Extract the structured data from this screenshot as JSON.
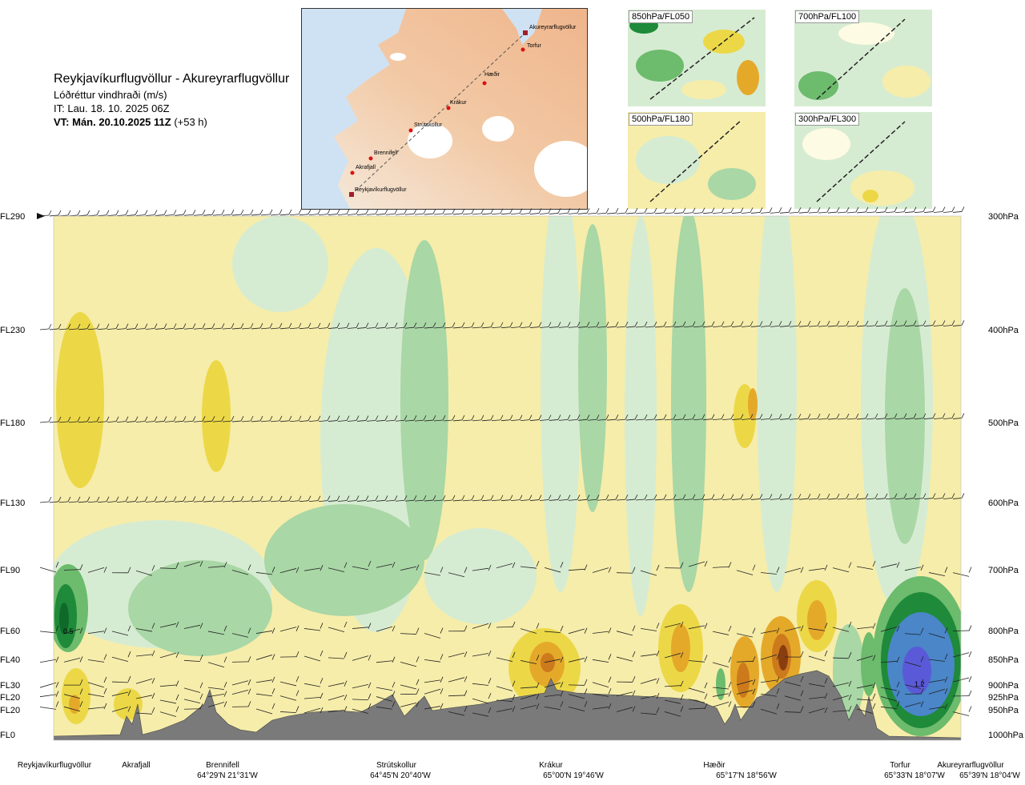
{
  "header": {
    "title": "Reykjavíkurflugvöllur - Akureyrarflugvöllur",
    "subtitle": "Lóðréttur vindhraði (m/s)",
    "it": "IT: Lau. 18. 10. 2025 06Z",
    "vt_bold": "VT: Mán. 20.10.2025 11Z",
    "vt_rest": " (+53 h)"
  },
  "map": {
    "places": [
      "Akureyrarflugvöllur",
      "Torfur",
      "Hæðir",
      "Krákur",
      "Strútskollur",
      "Brennifell",
      "Akrafjall",
      "Reykjavíkurflugvöllur"
    ]
  },
  "panels": [
    {
      "label": "850hPa/FL050"
    },
    {
      "label": "700hPa/FL100"
    },
    {
      "label": "500hPa/FL180"
    },
    {
      "label": "300hPa/FL300"
    }
  ],
  "chart_data": {
    "type": "heatmap",
    "title": "Lóðréttur vindhraði (m/s)",
    "y_left_labels": [
      "FL290",
      "FL230",
      "FL180",
      "FL130",
      "FL90",
      "FL60",
      "FL40",
      "FL30",
      "FL20",
      "FL20",
      "FL0"
    ],
    "y_right_labels": [
      "300hPa",
      "400hPa",
      "500hPa",
      "600hPa",
      "700hPa",
      "800hPa",
      "850hPa",
      "900hPa",
      "925hPa",
      "950hPa",
      "1000hPa"
    ],
    "pressure_levels_hpa": [
      300,
      400,
      500,
      600,
      700,
      800,
      850,
      900,
      925,
      950,
      1000
    ],
    "annotations": [
      {
        "text": "0.5",
        "x": "Reykjavíkurflugvöllur",
        "level_hpa": 800
      },
      {
        "text": "1.2",
        "x": "Torfur",
        "level_hpa": 900
      }
    ],
    "waypoints": [
      {
        "name": "Reykjavíkurflugvöllur",
        "coord": ""
      },
      {
        "name": "Akrafjall",
        "coord": ""
      },
      {
        "name": "Brennifell",
        "coord": "64°29'N 21°31'W"
      },
      {
        "name": "Strútskollur",
        "coord": "64°45'N 20°40'W"
      },
      {
        "name": "Krákur",
        "coord": "65°00'N 19°46'W"
      },
      {
        "name": "Hæðir",
        "coord": "65°17'N 18°56'W"
      },
      {
        "name": "Torfur",
        "coord": "65°33'N 18°07'W"
      },
      {
        "name": "Akureyrarflugvöllur",
        "coord": "65°39'N 18°04'W"
      }
    ],
    "color_scale": {
      "strong_up": "#5a5ad8",
      "up_3": "#4a86c8",
      "up_2": "#1e8a3a",
      "up_1": "#6dbb6d",
      "weak_up": "#a9d7a6",
      "near_zero_up": "#d6ecd2",
      "zero": "#fdfbe3",
      "near_zero_down": "#f6edaa",
      "down_1": "#ecd847",
      "down_2": "#e5a92a",
      "down_3": "#cc7a1c",
      "strong_down": "#8a3e10",
      "terrain": "#7a7a7a"
    }
  }
}
